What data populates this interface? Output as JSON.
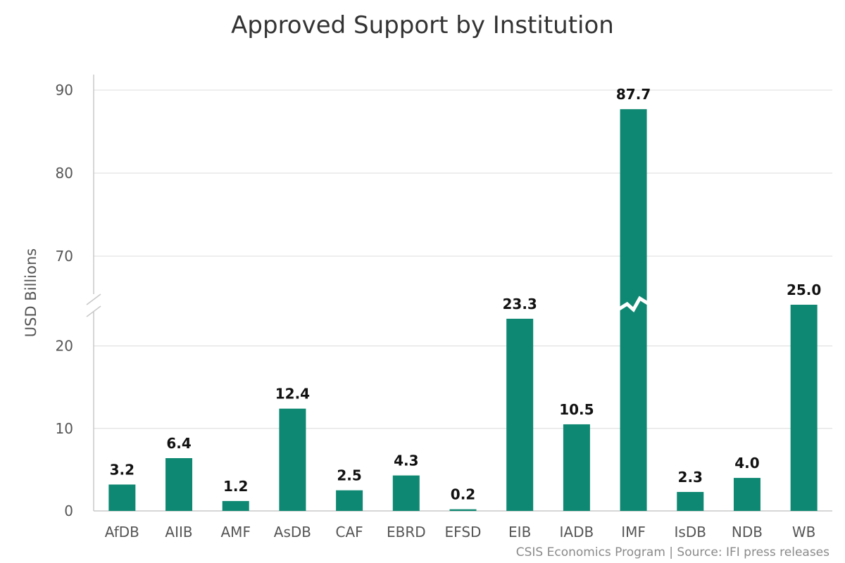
{
  "chart_data": {
    "type": "bar",
    "title": "Approved Support by Institution",
    "ylabel": "USD Billions",
    "xlabel": "",
    "categories": [
      "AfDB",
      "AIIB",
      "AMF",
      "AsDB",
      "CAF",
      "EBRD",
      "EFSD",
      "EIB",
      "IADB",
      "IMF",
      "IsDB",
      "NDB",
      "WB"
    ],
    "values": [
      3.2,
      6.4,
      1.2,
      12.4,
      2.5,
      4.3,
      0.2,
      23.3,
      10.5,
      87.7,
      2.3,
      4.0,
      25.0
    ],
    "data_labels": [
      "3.2",
      "6.4",
      "1.2",
      "12.4",
      "2.5",
      "4.3",
      "0.2",
      "23.3",
      "10.5",
      "87.7",
      "2.3",
      "4.0",
      "25.0"
    ],
    "y_ticks": [
      0,
      10,
      20,
      70,
      80,
      90
    ],
    "y_tick_labels": [
      "0",
      "10",
      "20",
      "70",
      "80",
      "90"
    ],
    "axis_break": [
      25,
      65
    ],
    "ylim": [
      0,
      92
    ],
    "grid": true,
    "bar_color": "#0e8872"
  },
  "credit": "CSIS Economics Program | Source: IFI press releases"
}
